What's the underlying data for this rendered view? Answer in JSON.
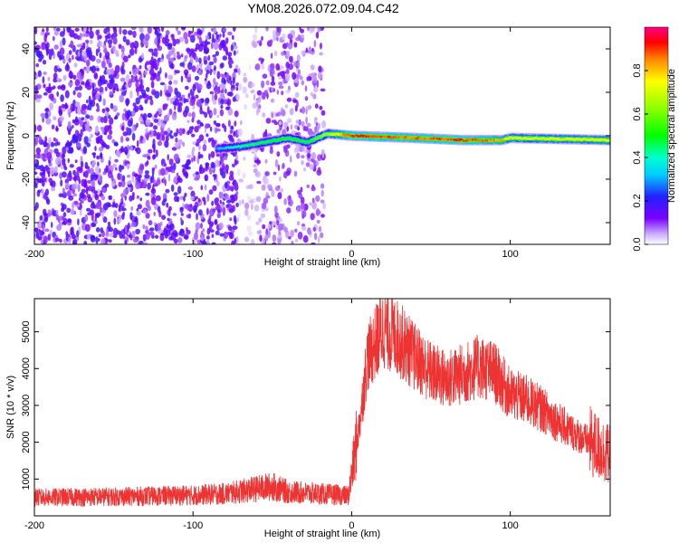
{
  "title": "YM08.2026.072.09.04.C42",
  "chart_data": [
    {
      "type": "heatmap",
      "name": "spectrogram",
      "xlabel": "Height of straight line (km)",
      "ylabel": "Frequency (Hz)",
      "xlim": [
        -200,
        163
      ],
      "ylim": [
        -50,
        50
      ],
      "xticks": [
        -200,
        -100,
        0,
        100
      ],
      "yticks": [
        -40,
        -20,
        0,
        20,
        40
      ],
      "colorbar": {
        "label": "Normalized spectral amplitude",
        "range": [
          0,
          1
        ],
        "ticks": [
          0.0,
          0.2,
          0.4,
          0.6,
          0.8
        ]
      },
      "regions": [
        {
          "x_range": [
            -200,
            -72
          ],
          "desc": "dense low-amplitude noise",
          "amplitude": 0.15
        },
        {
          "x_range": [
            -72,
            -60
          ],
          "desc": "sparse low-amplitude noise",
          "amplitude": 0.05
        },
        {
          "x_range": [
            -60,
            -17
          ],
          "desc": "moderate noise",
          "amplitude": 0.1
        },
        {
          "x_range": [
            -17,
            163
          ],
          "desc": "no noise",
          "amplitude": 0.0
        }
      ],
      "signal_line": {
        "x": [
          -85,
          -70,
          -55,
          -40,
          -28,
          -15,
          0,
          40,
          70,
          95,
          100,
          163
        ],
        "freq_hz": [
          -6,
          -5,
          -3,
          -1,
          -3,
          1,
          0,
          -1,
          -2,
          -2,
          -1,
          -2
        ],
        "amplitude": [
          0.3,
          0.45,
          0.5,
          0.55,
          0.5,
          0.7,
          0.95,
          0.9,
          0.95,
          0.85,
          0.75,
          0.8
        ]
      }
    },
    {
      "type": "line",
      "name": "snr",
      "xlabel": "Height of straight line (km)",
      "ylabel": "SNR (10 * v/v)",
      "xlim": [
        -200,
        163
      ],
      "ylim": [
        0,
        5900
      ],
      "xticks": [
        -200,
        -100,
        0,
        100
      ],
      "yticks": [
        1000,
        2000,
        3000,
        4000,
        5000
      ],
      "color": "#ee3333",
      "envelope": {
        "x": [
          -200,
          -150,
          -100,
          -80,
          -65,
          -50,
          -40,
          -20,
          -2,
          5,
          10,
          20,
          30,
          40,
          50,
          60,
          70,
          80,
          90,
          100,
          110,
          120,
          130,
          140,
          150,
          163
        ],
        "y": [
          500,
          520,
          560,
          600,
          700,
          800,
          650,
          600,
          550,
          2500,
          4300,
          5100,
          4800,
          4300,
          3900,
          3700,
          3850,
          4050,
          3900,
          3300,
          3150,
          2900,
          2550,
          2250,
          2000,
          1650
        ]
      }
    }
  ]
}
